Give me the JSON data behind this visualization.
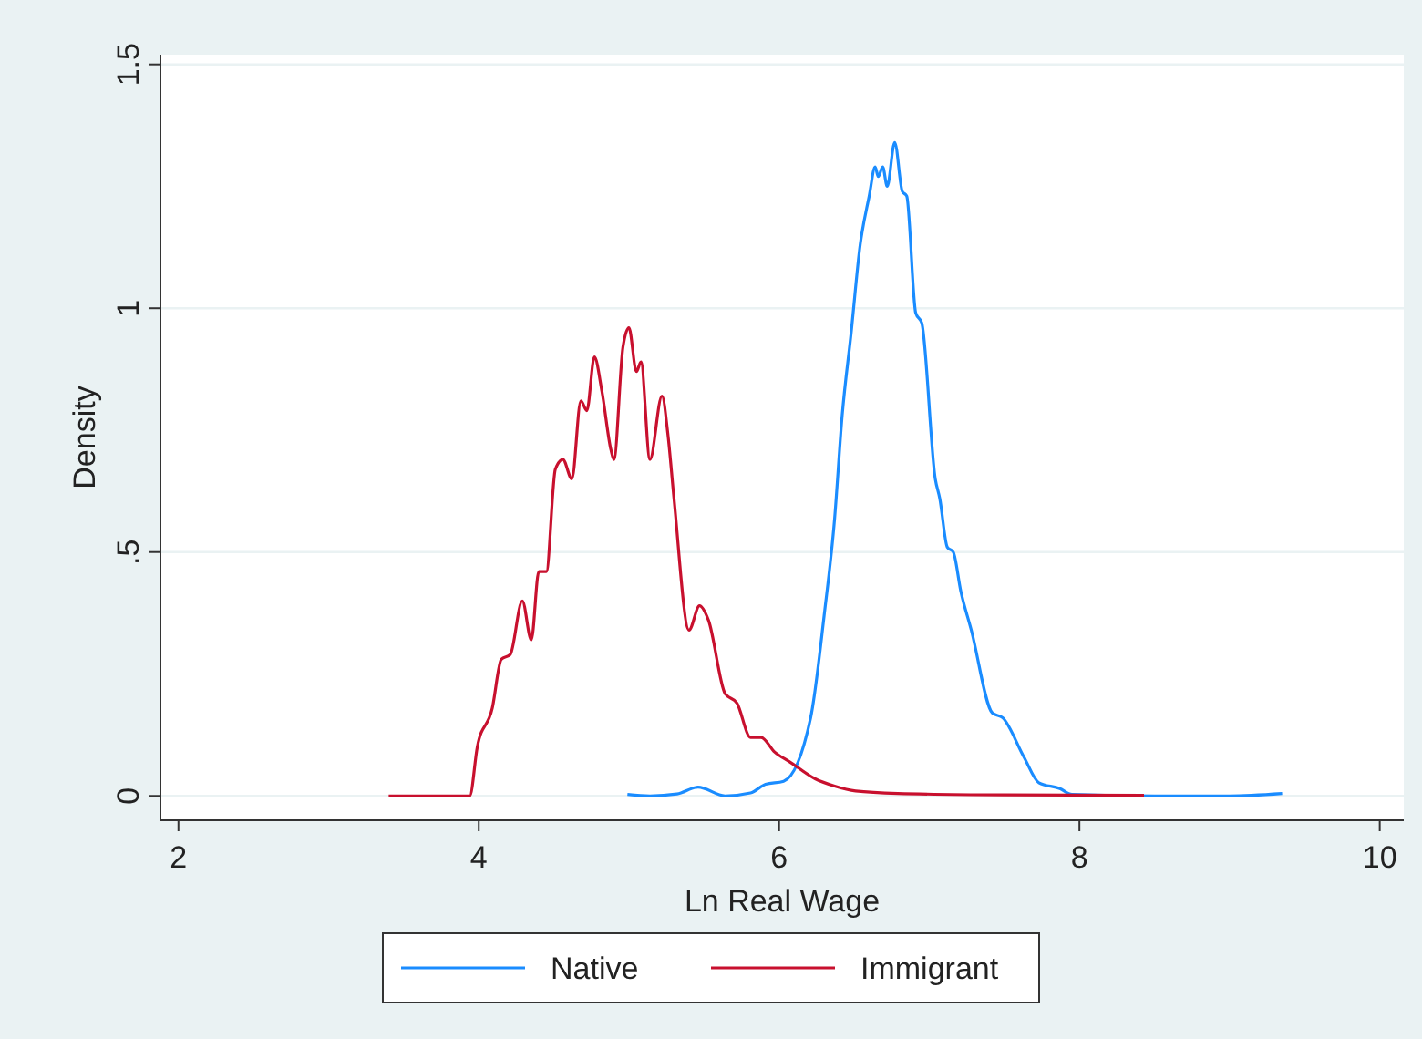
{
  "chart_data": {
    "type": "line",
    "xlabel": "Ln Real Wage",
    "ylabel": "Density",
    "xlim": [
      1.88,
      10.16
    ],
    "ylim": [
      -0.05,
      1.52
    ],
    "xticks": [
      2,
      4,
      6,
      8,
      10
    ],
    "yticks": [
      0,
      {
        "value": 0.5,
        "label": ".5"
      },
      1,
      1.5
    ],
    "grid": "y",
    "legend": "bottom",
    "marker": "none",
    "line_style": "solid",
    "series": [
      {
        "name": "Native",
        "color": "#1a8cff",
        "x": [
          4.99,
          5.14,
          5.32,
          5.46,
          5.64,
          5.81,
          5.91,
          6.03,
          6.21,
          6.3,
          6.37,
          6.42,
          6.48,
          6.54,
          6.6,
          6.64,
          6.66,
          6.69,
          6.72,
          6.77,
          6.82,
          6.85,
          6.91,
          6.95,
          7.04,
          7.07,
          7.12,
          7.16,
          7.21,
          7.28,
          7.42,
          7.49,
          7.63,
          7.73,
          7.87,
          7.95,
          8.5,
          9.0,
          9.35
        ],
        "values": [
          0.003,
          0,
          0.004,
          0.018,
          0,
          0.006,
          0.024,
          0.03,
          0.16,
          0.37,
          0.57,
          0.78,
          0.95,
          1.13,
          1.23,
          1.29,
          1.27,
          1.29,
          1.25,
          1.34,
          1.24,
          1.23,
          0.99,
          0.97,
          0.65,
          0.61,
          0.51,
          0.5,
          0.42,
          0.34,
          0.17,
          0.16,
          0.08,
          0.027,
          0.015,
          0.003,
          0,
          0,
          0.005
        ]
      },
      {
        "name": "Immigrant",
        "color": "#c8102e",
        "x": [
          3.4,
          3.94,
          3.99,
          4.09,
          4.15,
          4.21,
          4.29,
          4.35,
          4.4,
          4.45,
          4.51,
          4.56,
          4.62,
          4.68,
          4.72,
          4.77,
          4.82,
          4.88,
          4.9,
          4.96,
          5.0,
          5.05,
          5.08,
          5.14,
          5.22,
          5.26,
          5.3,
          5.4,
          5.47,
          5.53,
          5.64,
          5.72,
          5.81,
          5.88,
          5.97,
          6.07,
          6.24,
          6.37,
          6.51,
          6.79,
          7.5,
          8.43
        ],
        "values": [
          0,
          0,
          0.1,
          0.18,
          0.28,
          0.29,
          0.4,
          0.32,
          0.46,
          0.46,
          0.67,
          0.69,
          0.65,
          0.81,
          0.79,
          0.9,
          0.83,
          0.71,
          0.69,
          0.92,
          0.96,
          0.87,
          0.89,
          0.69,
          0.82,
          0.74,
          0.61,
          0.34,
          0.39,
          0.36,
          0.21,
          0.19,
          0.12,
          0.12,
          0.09,
          0.07,
          0.035,
          0.02,
          0.01,
          0.005,
          0.002,
          0.001
        ]
      }
    ]
  }
}
